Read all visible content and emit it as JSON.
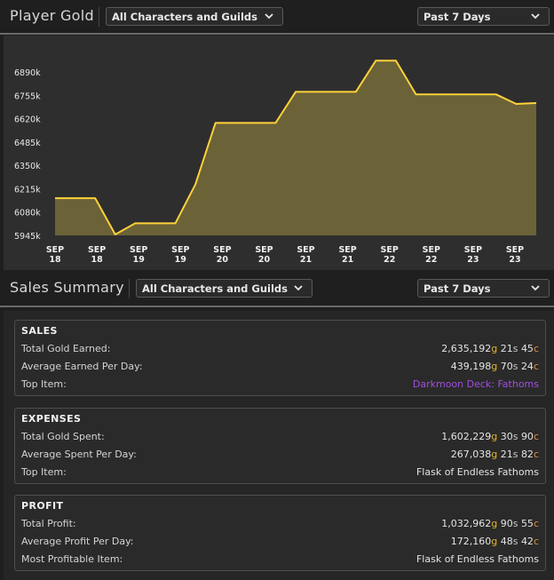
{
  "gold_header": {
    "title": "Player Gold",
    "character_filter": "All Characters and Guilds",
    "time_filter": "Past 7 Days"
  },
  "chart_data": {
    "type": "area",
    "y_ticks": [
      "6890k",
      "6755k",
      "6620k",
      "6485k",
      "6350k",
      "6215k",
      "6080k",
      "5945k"
    ],
    "x_ticks": [
      [
        "SEP",
        "18"
      ],
      [
        "SEP",
        "18"
      ],
      [
        "SEP",
        "19"
      ],
      [
        "SEP",
        "19"
      ],
      [
        "SEP",
        "20"
      ],
      [
        "SEP",
        "20"
      ],
      [
        "SEP",
        "21"
      ],
      [
        "SEP",
        "21"
      ],
      [
        "SEP",
        "22"
      ],
      [
        "SEP",
        "22"
      ],
      [
        "SEP",
        "23"
      ],
      [
        "SEP",
        "23"
      ]
    ],
    "ylim": [
      5945,
      6980
    ],
    "values_k": [
      6160,
      6160,
      6160,
      5950,
      6015,
      6015,
      6015,
      6240,
      6595,
      6595,
      6595,
      6595,
      6775,
      6775,
      6775,
      6775,
      6955,
      6955,
      6760,
      6760,
      6760,
      6760,
      6760,
      6705,
      6710
    ],
    "line_color": "#ffd23a",
    "fill_color": "#6b6237",
    "grid": false
  },
  "sales_header": {
    "title": "Sales Summary",
    "character_filter": "All Characters and Guilds",
    "time_filter": "Past 7 Days"
  },
  "sales": {
    "title": "SALES",
    "rows": [
      {
        "label": "Total Gold Earned:",
        "g": "2,635,192",
        "s": "21",
        "c": "45"
      },
      {
        "label": "Average Earned Per Day:",
        "g": "439,198",
        "s": "70",
        "c": "24"
      },
      {
        "label": "Top Item:",
        "text": "Darkmoon Deck: Fathoms"
      }
    ]
  },
  "expenses": {
    "title": "EXPENSES",
    "rows": [
      {
        "label": "Total Gold Spent:",
        "g": "1,602,229",
        "s": "30",
        "c": "90"
      },
      {
        "label": "Average Spent Per Day:",
        "g": "267,038",
        "s": "21",
        "c": "82"
      },
      {
        "label": "Top Item:",
        "text": "Flask of Endless Fathoms"
      }
    ]
  },
  "profit": {
    "title": "PROFIT",
    "rows": [
      {
        "label": "Total Profit:",
        "g": "1,032,962",
        "s": "90",
        "c": "55"
      },
      {
        "label": "Average Profit Per Day:",
        "g": "172,160",
        "s": "48",
        "c": "42"
      },
      {
        "label": "Most Profitable Item:",
        "text": "Flask of Endless Fathoms"
      }
    ]
  },
  "units": {
    "g": "g",
    "s": "s",
    "c": "c"
  },
  "colors": {
    "gold": "#e6b422",
    "silver": "#c8c8c8",
    "copper": "#e38d3a",
    "epic_item": "#a24ee0"
  }
}
